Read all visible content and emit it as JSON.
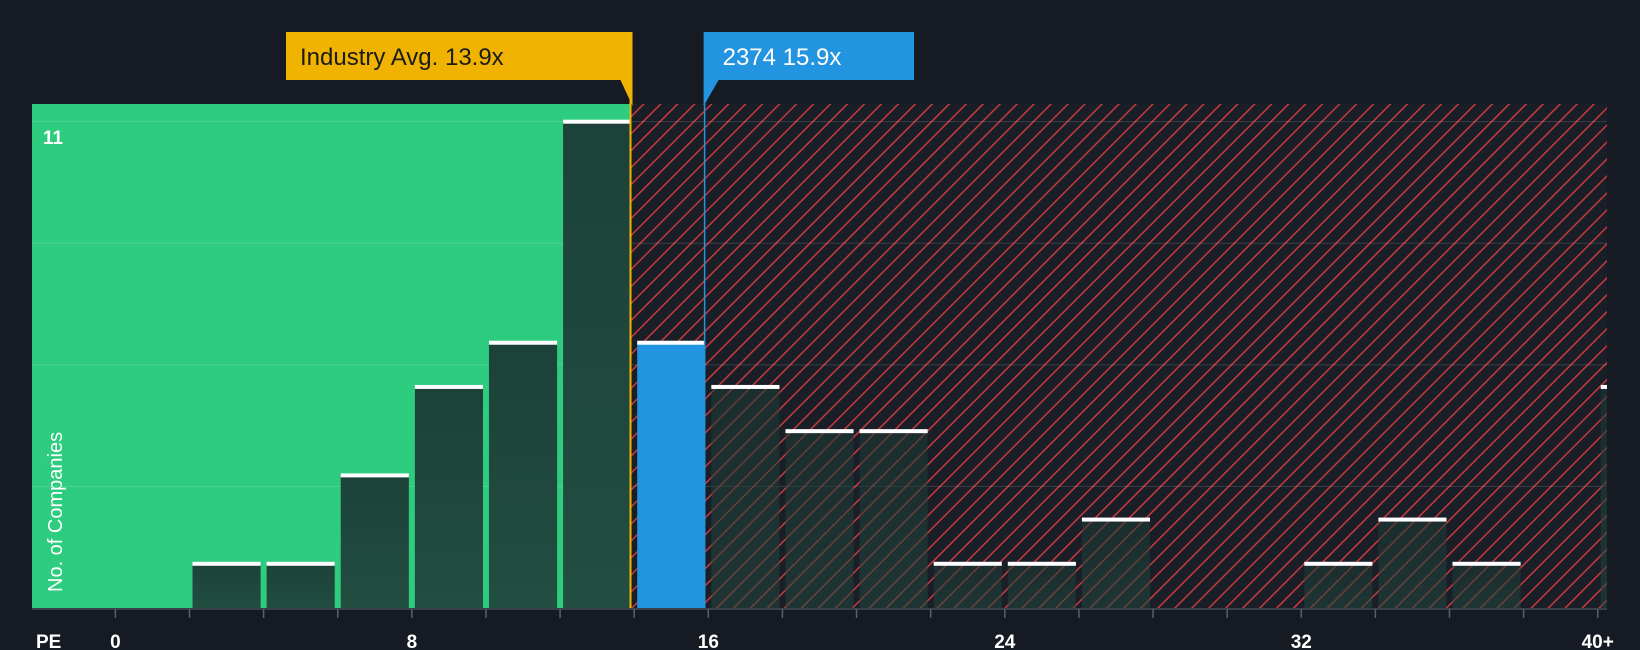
{
  "chart_data": {
    "type": "bar",
    "title": "",
    "xlabel": "PE",
    "ylabel": "No. of Companies",
    "xlim": [
      -2.25,
      40.25
    ],
    "ylim": [
      0,
      11.4
    ],
    "x_ticks": [
      {
        "value": 0,
        "label": "0"
      },
      {
        "value": 8,
        "label": "8"
      },
      {
        "value": 16,
        "label": "16"
      },
      {
        "value": 24,
        "label": "24"
      },
      {
        "value": 32,
        "label": "32"
      },
      {
        "value": 40,
        "label": "40+"
      }
    ],
    "y_max_label": "11",
    "bin_width": 2,
    "bins": [
      {
        "start": 0,
        "count": 0
      },
      {
        "start": 2,
        "count": 1
      },
      {
        "start": 4,
        "count": 1
      },
      {
        "start": 6,
        "count": 3
      },
      {
        "start": 8,
        "count": 5
      },
      {
        "start": 10,
        "count": 6
      },
      {
        "start": 12,
        "count": 11
      },
      {
        "start": 14,
        "count": 6
      },
      {
        "start": 16,
        "count": 5
      },
      {
        "start": 18,
        "count": 4
      },
      {
        "start": 20,
        "count": 4
      },
      {
        "start": 22,
        "count": 1
      },
      {
        "start": 24,
        "count": 1
      },
      {
        "start": 26,
        "count": 2
      },
      {
        "start": 28,
        "count": 0
      },
      {
        "start": 30,
        "count": 0
      },
      {
        "start": 32,
        "count": 1
      },
      {
        "start": 34,
        "count": 2
      },
      {
        "start": 36,
        "count": 1
      },
      {
        "start": 38,
        "count": 0
      },
      {
        "start": 40,
        "count": 5
      }
    ],
    "industry_avg": {
      "value": 13.9,
      "label": "Industry Avg. 13.9x"
    },
    "company": {
      "value": 15.9,
      "label": "2374 15.9x",
      "name": "2374"
    },
    "colors": {
      "background": "#151a23",
      "fair_zone": "#2ecc7f",
      "overvalued_zone": "#c73a40",
      "bar_dark": "#1d2f2f",
      "company_bar": "#2394e0",
      "industry_line": "#f0b400",
      "company_line": "#2394e0",
      "bar_cap": "#ffffff"
    }
  }
}
